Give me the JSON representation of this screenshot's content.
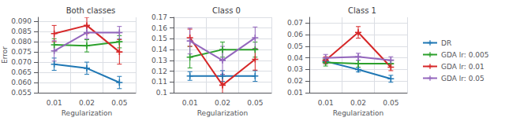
{
  "chart_data": [
    {
      "type": "line",
      "title": "Both classes",
      "xlabel": "Regularization",
      "ylabel": "Error",
      "categories": [
        "0.01",
        "0.02",
        "0.05"
      ],
      "series": [
        {
          "name": "DR",
          "color": "#1f77b4",
          "marker": "+",
          "values": [
            0.069,
            0.067,
            0.06
          ],
          "errors": [
            0.003,
            0.003,
            0.003
          ]
        },
        {
          "name": "GDA lr: 0.005",
          "color": "#2ca02c",
          "marker": "+",
          "values": [
            0.0785,
            0.078,
            0.08
          ],
          "errors": [
            0.003,
            0.003,
            0.003
          ]
        },
        {
          "name": "GDA lr: 0.01",
          "color": "#d62728",
          "marker": "+",
          "values": [
            0.084,
            0.088,
            0.075
          ],
          "errors": [
            0.004,
            0.004,
            0.006
          ]
        },
        {
          "name": "GDA lr: 0.05",
          "color": "#9467bd",
          "marker": "+",
          "values": [
            0.0755,
            0.0845,
            0.0845
          ],
          "errors": [
            0.005,
            0.003,
            0.003
          ]
        }
      ],
      "ylim": [
        0.055,
        0.092
      ],
      "yticks": [
        0.055,
        {
          "value": 0.06,
          "label": "0.060"
        },
        0.065,
        {
          "value": 0.07,
          "label": "0.070"
        },
        0.075,
        {
          "value": 0.08,
          "label": "0.080"
        },
        0.085,
        {
          "value": 0.09,
          "label": "0.090"
        }
      ],
      "grid": true,
      "legend": "right"
    },
    {
      "type": "line",
      "title": "Class 0",
      "xlabel": "Regularization",
      "categories": [
        "0.01",
        "0.02",
        "0.05"
      ],
      "series": [
        {
          "name": "DR",
          "color": "#1f77b4",
          "marker": "+",
          "values": [
            0.1155,
            0.1155,
            0.1155
          ],
          "errors": [
            0.004,
            0.005,
            0.005
          ]
        },
        {
          "name": "GDA lr: 0.005",
          "color": "#2ca02c",
          "marker": "+",
          "values": [
            0.133,
            0.14,
            0.14
          ],
          "errors": [
            0.01,
            0.007,
            0.007
          ]
        },
        {
          "name": "GDA lr: 0.01",
          "color": "#d62728",
          "marker": "+",
          "values": [
            0.151,
            0.107,
            0.131
          ],
          "errors": [
            0.008,
            0.01,
            0.01
          ]
        },
        {
          "name": "GDA lr: 0.05",
          "color": "#9467bd",
          "marker": "+",
          "values": [
            0.148,
            0.13,
            0.151
          ],
          "errors": [
            0.012,
            0.013,
            0.01
          ]
        }
      ],
      "ylim": [
        0.1,
        0.17
      ],
      "yticks": [
        0.1,
        0.11,
        0.12,
        0.13,
        0.14,
        0.15,
        0.16,
        0.17
      ],
      "grid": true
    },
    {
      "type": "line",
      "title": "Class 1",
      "xlabel": "Regularization",
      "categories": [
        "0.01",
        "0.02",
        "0.05"
      ],
      "series": [
        {
          "name": "DR",
          "color": "#1f77b4",
          "marker": "+",
          "values": [
            0.037,
            0.03,
            0.022
          ],
          "errors": [
            0.002,
            0.002,
            0.003
          ]
        },
        {
          "name": "GDA lr: 0.005",
          "color": "#2ca02c",
          "marker": "+",
          "values": [
            0.036,
            0.035,
            0.035
          ],
          "errors": [
            0.003,
            0.003,
            0.003
          ]
        },
        {
          "name": "GDA lr: 0.01",
          "color": "#d62728",
          "marker": "+",
          "values": [
            0.038,
            0.062,
            0.032
          ],
          "errors": [
            0.003,
            0.005,
            0.003
          ]
        },
        {
          "name": "GDA lr: 0.05",
          "color": "#9467bd",
          "marker": "+",
          "values": [
            0.04,
            0.041,
            0.038
          ],
          "errors": [
            0.003,
            0.003,
            0.003
          ]
        }
      ],
      "ylim": [
        0.01,
        0.075
      ],
      "yticks": [
        0.01,
        0.02,
        0.03,
        0.04,
        0.05,
        0.06,
        0.07
      ],
      "grid": true
    }
  ]
}
